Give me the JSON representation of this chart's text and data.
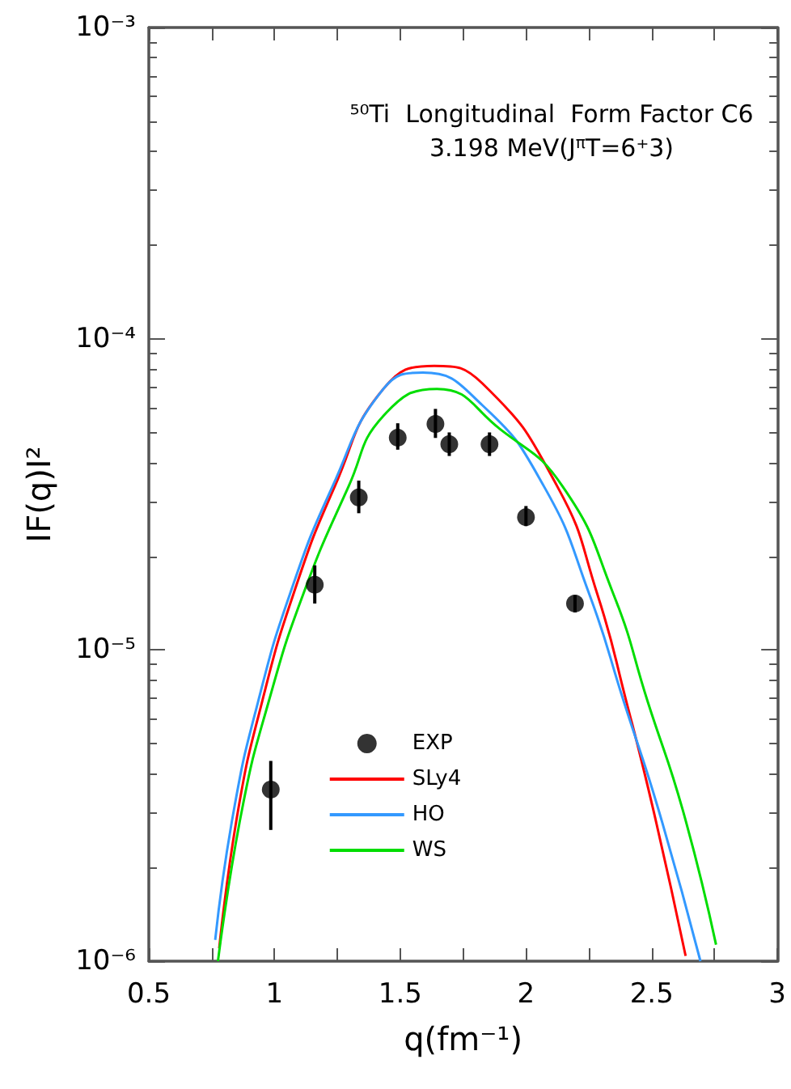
{
  "chart_data": {
    "type": "line",
    "title": "⁵⁰Ti  Longitudinal  Form Factor C6",
    "subtitle": "3.198 MeV(J$^{π}$T=6⁺3)",
    "xlabel": "q(fm⁻¹)",
    "ylabel": "IF(q)I²",
    "xlim": [
      0.5,
      3
    ],
    "xticks": [
      0.5,
      1,
      1.5,
      2,
      2.5,
      3
    ],
    "ylim": [
      1e-06,
      0.001
    ],
    "yticks": [
      {
        "value": 1e-06,
        "label": "10⁻⁶"
      },
      {
        "value": 1e-05,
        "label": "10⁻⁵"
      },
      {
        "value": 0.0001,
        "label": "10⁻⁴"
      },
      {
        "value": 0.001,
        "label": "10⁻³"
      }
    ],
    "log": "y",
    "grid": false,
    "legend": "bottom",
    "series": [
      {
        "name": "EXP",
        "type": "scatter",
        "marker": "circle",
        "color": "#000000",
        "x": [
          0.985,
          1.16,
          1.335,
          1.49,
          1.64,
          1.695,
          1.855,
          2.0,
          2.195
        ],
        "values": [
          3.56e-06,
          1.62e-05,
          3.09e-05,
          4.81e-05,
          5.32e-05,
          4.58e-05,
          4.58e-05,
          2.67e-05,
          1.41e-05
        ],
        "errors": [
          [
            2.64e-06,
            4.4e-06
          ],
          [
            1.41e-05,
            1.87e-05
          ],
          [
            2.75e-05,
            3.5e-05
          ],
          [
            4.4e-05,
            5.35e-05
          ],
          [
            4.8e-05,
            5.95e-05
          ],
          [
            4.2e-05,
            5e-05
          ],
          [
            4.2e-05,
            5e-05
          ],
          [
            2.5e-05,
            2.9e-05
          ],
          [
            1.32e-05,
            1.5e-05
          ]
        ]
      },
      {
        "name": "SLy4",
        "marker": "none",
        "line_style": "solid",
        "color": "#ff0000",
        "x": [
          0.78,
          0.855,
          0.95,
          1.075,
          1.24,
          1.433,
          1.635,
          1.827,
          2.124,
          2.284,
          2.4,
          2.507,
          2.635
        ],
        "values": [
          1.1e-06,
          3.05e-06,
          6.79e-06,
          1.51e-05,
          3.36e-05,
          6.9e-05,
          8.18e-05,
          7.18e-05,
          3.36e-05,
          1.51e-05,
          6.79e-06,
          3.05e-06,
          1.04e-06
        ]
      },
      {
        "name": "HO",
        "marker": "none",
        "line_style": "solid",
        "color": "#3399ff",
        "x": [
          0.764,
          0.838,
          0.934,
          1.061,
          1.231,
          1.433,
          1.59,
          1.827,
          2.071,
          2.252,
          2.39,
          2.528,
          2.694
        ],
        "values": [
          1.17e-06,
          3.05e-06,
          6.79e-06,
          1.51e-05,
          3.36e-05,
          6.9e-05,
          7.78e-05,
          6.11e-05,
          3.36e-05,
          1.51e-05,
          6.79e-06,
          3.05e-06,
          1e-06
        ]
      },
      {
        "name": "WS",
        "marker": "none",
        "line_style": "solid",
        "color": "#00dd00",
        "x": [
          0.775,
          0.87,
          0.976,
          1.114,
          1.295,
          1.433,
          1.646,
          1.9,
          2.145,
          2.348,
          2.485,
          2.624,
          2.756
        ],
        "values": [
          1e-06,
          3.05e-06,
          6.79e-06,
          1.51e-05,
          3.36e-05,
          5.65e-05,
          6.9e-05,
          5.1e-05,
          3.36e-05,
          1.51e-05,
          6.79e-06,
          3.05e-06,
          1.13e-06
        ]
      }
    ]
  }
}
